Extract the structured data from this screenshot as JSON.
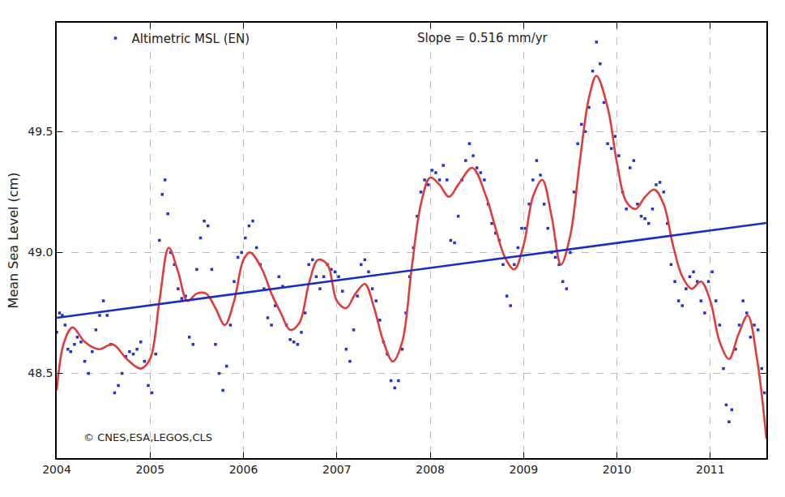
{
  "chart_data": {
    "type": "scatter",
    "y_label": "Mean Sea Level (cm)",
    "annotations": [
      "Slope = 0.516 mm/yr",
      "© CNES,ESA,LEGOS,CLS"
    ],
    "xlim": [
      2004,
      2011.6
    ],
    "xticks": [
      2004,
      2005,
      2006,
      2007,
      2008,
      2009,
      2010,
      2011
    ],
    "ylim": [
      48.15,
      49.95
    ],
    "yticks": [
      48.5,
      {
        "value": 49,
        "label": "49.0"
      },
      49.5
    ],
    "grid": true,
    "legend": "upper left",
    "series": [
      {
        "name": "Altimetric MSL (EN)",
        "type": "scatter",
        "marker": "square",
        "color": "#2233cc",
        "x": [
          2004.0,
          2004.03,
          2004.06,
          2004.09,
          2004.12,
          2004.15,
          2004.19,
          2004.22,
          2004.26,
          2004.3,
          2004.34,
          2004.38,
          2004.42,
          2004.46,
          2004.5,
          2004.54,
          2004.58,
          2004.62,
          2004.66,
          2004.7,
          2004.74,
          2004.78,
          2004.82,
          2004.86,
          2004.9,
          2004.94,
          2004.98,
          2005.02,
          2005.06,
          2005.1,
          2005.13,
          2005.16,
          2005.19,
          2005.22,
          2005.26,
          2005.3,
          2005.34,
          2005.38,
          2005.42,
          2005.46,
          2005.5,
          2005.54,
          2005.58,
          2005.62,
          2005.66,
          2005.7,
          2005.74,
          2005.78,
          2005.82,
          2005.86,
          2005.9,
          2005.94,
          2005.98,
          2006.02,
          2006.06,
          2006.1,
          2006.14,
          2006.18,
          2006.22,
          2006.26,
          2006.3,
          2006.34,
          2006.38,
          2006.42,
          2006.46,
          2006.5,
          2006.54,
          2006.58,
          2006.62,
          2006.66,
          2006.7,
          2006.74,
          2006.78,
          2006.82,
          2006.86,
          2006.9,
          2006.94,
          2006.98,
          2007.02,
          2007.06,
          2007.1,
          2007.14,
          2007.18,
          2007.22,
          2007.26,
          2007.3,
          2007.34,
          2007.38,
          2007.42,
          2007.46,
          2007.5,
          2007.54,
          2007.58,
          2007.62,
          2007.66,
          2007.7,
          2007.74,
          2007.78,
          2007.82,
          2007.86,
          2007.9,
          2007.94,
          2007.98,
          2008.02,
          2008.06,
          2008.1,
          2008.14,
          2008.18,
          2008.22,
          2008.26,
          2008.3,
          2008.34,
          2008.38,
          2008.42,
          2008.46,
          2008.5,
          2008.54,
          2008.58,
          2008.62,
          2008.66,
          2008.7,
          2008.74,
          2008.78,
          2008.82,
          2008.86,
          2008.9,
          2008.94,
          2008.98,
          2009.02,
          2009.06,
          2009.1,
          2009.14,
          2009.18,
          2009.22,
          2009.26,
          2009.3,
          2009.34,
          2009.38,
          2009.42,
          2009.46,
          2009.5,
          2009.54,
          2009.58,
          2009.62,
          2009.66,
          2009.7,
          2009.74,
          2009.78,
          2009.82,
          2009.86,
          2009.9,
          2009.94,
          2009.98,
          2010.02,
          2010.06,
          2010.1,
          2010.14,
          2010.18,
          2010.22,
          2010.26,
          2010.3,
          2010.34,
          2010.38,
          2010.42,
          2010.46,
          2010.5,
          2010.54,
          2010.58,
          2010.62,
          2010.66,
          2010.7,
          2010.74,
          2010.78,
          2010.82,
          2010.86,
          2010.9,
          2010.94,
          2010.98,
          2011.02,
          2011.06,
          2011.1,
          2011.14,
          2011.17,
          2011.2,
          2011.23,
          2011.27,
          2011.31,
          2011.35,
          2011.39,
          2011.43,
          2011.47,
          2011.51,
          2011.55,
          2011.58
        ],
        "values": [
          48.67,
          48.75,
          48.74,
          48.7,
          48.6,
          48.59,
          48.62,
          48.65,
          48.63,
          48.55,
          48.5,
          48.59,
          48.68,
          48.74,
          48.8,
          48.74,
          48.62,
          48.42,
          48.45,
          48.5,
          48.57,
          48.59,
          48.58,
          48.6,
          48.63,
          48.55,
          48.45,
          48.42,
          48.58,
          49.05,
          49.24,
          49.3,
          49.16,
          49.0,
          48.95,
          48.85,
          48.81,
          48.82,
          48.65,
          48.62,
          48.93,
          49.06,
          49.13,
          49.11,
          48.93,
          48.62,
          48.5,
          48.43,
          48.53,
          48.7,
          48.88,
          48.98,
          49.0,
          49.06,
          49.11,
          49.13,
          49.02,
          48.95,
          48.85,
          48.73,
          48.7,
          48.78,
          48.9,
          48.86,
          48.7,
          48.64,
          48.63,
          48.62,
          48.67,
          48.75,
          48.95,
          48.97,
          48.9,
          48.85,
          48.9,
          48.95,
          48.93,
          48.92,
          48.9,
          48.84,
          48.6,
          48.55,
          48.68,
          48.82,
          48.95,
          48.97,
          48.92,
          48.85,
          48.8,
          48.72,
          48.63,
          48.58,
          48.47,
          48.44,
          48.47,
          48.6,
          48.75,
          48.9,
          49.02,
          49.15,
          49.25,
          49.3,
          49.28,
          49.34,
          49.33,
          49.3,
          49.36,
          49.3,
          49.05,
          49.04,
          49.15,
          49.3,
          49.38,
          49.45,
          49.4,
          49.35,
          49.33,
          49.3,
          49.2,
          49.12,
          49.08,
          49.05,
          48.95,
          48.82,
          48.78,
          48.95,
          49.02,
          49.1,
          49.1,
          49.2,
          49.3,
          49.38,
          49.32,
          49.2,
          49.1,
          49.0,
          48.98,
          48.95,
          48.88,
          48.85,
          49.0,
          49.25,
          49.45,
          49.53,
          49.5,
          49.6,
          49.75,
          49.87,
          49.78,
          49.62,
          49.45,
          49.43,
          49.48,
          49.4,
          49.25,
          49.18,
          49.35,
          49.38,
          49.2,
          49.15,
          49.14,
          49.12,
          49.18,
          49.28,
          49.29,
          49.25,
          49.12,
          48.95,
          48.88,
          48.8,
          48.78,
          48.85,
          48.9,
          48.92,
          48.88,
          48.8,
          48.75,
          48.88,
          48.92,
          48.8,
          48.7,
          48.52,
          48.37,
          48.3,
          48.35,
          48.6,
          48.7,
          48.8,
          48.75,
          48.65,
          48.7,
          48.68,
          48.52,
          48.42
        ]
      },
      {
        "type": "line",
        "line_style": "solid",
        "color": "#e03c3c",
        "x": [
          2004.0,
          2004.08,
          2004.17,
          2004.3,
          2004.45,
          2004.6,
          2004.75,
          2004.9,
          2005.0,
          2005.1,
          2005.2,
          2005.3,
          2005.4,
          2005.5,
          2005.6,
          2005.7,
          2005.8,
          2005.9,
          2006.0,
          2006.07,
          2006.2,
          2006.3,
          2006.4,
          2006.5,
          2006.6,
          2006.7,
          2006.8,
          2006.9,
          2007.0,
          2007.1,
          2007.2,
          2007.3,
          2007.4,
          2007.5,
          2007.6,
          2007.7,
          2007.8,
          2007.9,
          2008.0,
          2008.1,
          2008.2,
          2008.3,
          2008.45,
          2008.6,
          2008.7,
          2008.8,
          2008.9,
          2009.0,
          2009.1,
          2009.2,
          2009.3,
          2009.4,
          2009.5,
          2009.6,
          2009.7,
          2009.78,
          2009.9,
          2010.0,
          2010.1,
          2010.2,
          2010.3,
          2010.4,
          2010.5,
          2010.6,
          2010.7,
          2010.8,
          2010.9,
          2011.0,
          2011.1,
          2011.2,
          2011.3,
          2011.4,
          2011.5,
          2011.6
        ],
        "values": [
          48.43,
          48.63,
          48.69,
          48.63,
          48.6,
          48.62,
          48.56,
          48.52,
          48.56,
          48.8,
          49.02,
          48.92,
          48.8,
          48.83,
          48.83,
          48.77,
          48.7,
          48.8,
          48.97,
          49.0,
          48.93,
          48.83,
          48.75,
          48.68,
          48.71,
          48.87,
          48.97,
          48.95,
          48.8,
          48.77,
          48.83,
          48.87,
          48.77,
          48.63,
          48.55,
          48.63,
          48.93,
          49.2,
          49.31,
          49.28,
          49.23,
          49.28,
          49.35,
          49.23,
          49.1,
          48.98,
          48.93,
          49.03,
          49.23,
          49.3,
          49.15,
          48.95,
          49.07,
          49.37,
          49.64,
          49.73,
          49.6,
          49.37,
          49.21,
          49.18,
          49.23,
          49.26,
          49.2,
          49.03,
          48.9,
          48.85,
          48.88,
          48.8,
          48.63,
          48.56,
          48.66,
          48.74,
          48.56,
          48.23
        ]
      },
      {
        "type": "line",
        "line_style": "solid",
        "color": "#1a2fc0",
        "x": [
          2004,
          2011.6
        ],
        "values": [
          48.73,
          49.122
        ]
      }
    ]
  }
}
